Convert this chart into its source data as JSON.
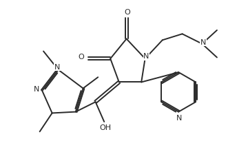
{
  "background_color": "#ffffff",
  "line_color": "#2a2a2a",
  "line_width": 1.4,
  "font_size": 8.0,
  "figsize": [
    3.6,
    2.4
  ],
  "dpi": 100,
  "xlim": [
    0,
    10
  ],
  "ylim": [
    0,
    6.67
  ]
}
